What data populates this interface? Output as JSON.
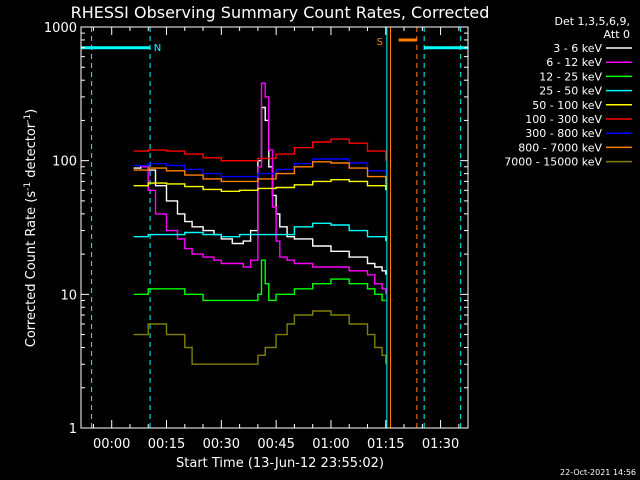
{
  "chart_data": {
    "type": "line",
    "title": "RHESSI Observing Summary Count Rates, Corrected",
    "xlabel": "Start Time (13-Jun-12 23:55:02)",
    "ylabel_main": "Corrected Count Rate (s",
    "ylabel_sup1": "-1",
    "ylabel_mid": " detector",
    "ylabel_sup2": "-1",
    "ylabel_end": ")",
    "yscale": "log",
    "ylim": [
      1,
      1000
    ],
    "xlim_minutes": [
      -8.4,
      97.5
    ],
    "x_ticks": [
      {
        "label": "00:00",
        "min": 0
      },
      {
        "label": "00:15",
        "min": 15
      },
      {
        "label": "00:30",
        "min": 30
      },
      {
        "label": "00:45",
        "min": 45
      },
      {
        "label": "01:00",
        "min": 60
      },
      {
        "label": "01:15",
        "min": 75
      },
      {
        "label": "01:30",
        "min": 90
      }
    ],
    "y_ticks": [
      {
        "label": "1",
        "v": 1
      },
      {
        "label": "10",
        "v": 10
      },
      {
        "label": "100",
        "v": 100
      },
      {
        "label": "1000",
        "v": 1000
      }
    ],
    "legend_header": [
      "Det 1,3,5,6,9,",
      "Att 0"
    ],
    "footer_date": "22-Oct-2021 14:56",
    "annotations": [
      {
        "label": "N",
        "color": "#00ffff"
      },
      {
        "label": "S",
        "color": "#ff8000"
      }
    ],
    "night_bars": [
      {
        "x0": -8.4,
        "x1": 10.5,
        "y": 700,
        "color": "#00ffff"
      },
      {
        "x0": 85.5,
        "x1": 97.5,
        "y": 700,
        "color": "#00ffff"
      }
    ],
    "saa_bar": {
      "x0": 78.5,
      "x1": 83.5,
      "y": 800,
      "color": "#ff8000"
    },
    "vlines": [
      {
        "x": -5.5,
        "color": "#00ffff",
        "style": "dashed"
      },
      {
        "x": 10.5,
        "color": "#00ffff",
        "style": "dashed"
      },
      {
        "x": 75.3,
        "color": "#00ffff",
        "style": "solid"
      },
      {
        "x": 85.5,
        "color": "#00ffff",
        "style": "dashed"
      },
      {
        "x": 76.3,
        "color": "#ff8000",
        "style": "solid"
      },
      {
        "x": 83.5,
        "color": "#ff8000",
        "style": "dashed"
      },
      {
        "x": 95.5,
        "color": "#00ffff",
        "style": "dashed"
      }
    ],
    "series": [
      {
        "name": "3 - 6 keV",
        "color": "#ffffff",
        "x": [
          6,
          8,
          10,
          12,
          15,
          18,
          20,
          22,
          25,
          28,
          30,
          33,
          36,
          38,
          40,
          41,
          42,
          43,
          44,
          45,
          46,
          48,
          50,
          55,
          60,
          65,
          70,
          72,
          74,
          75
        ],
        "y": [
          88,
          90,
          85,
          65,
          50,
          40,
          35,
          32,
          30,
          28,
          26,
          24,
          25,
          30,
          100,
          250,
          200,
          90,
          55,
          40,
          32,
          27,
          26,
          23,
          21,
          19,
          17,
          16,
          15,
          14
        ]
      },
      {
        "name": "6 - 12 keV",
        "color": "#ff00ff",
        "x": [
          8,
          10,
          12,
          15,
          18,
          20,
          22,
          25,
          28,
          30,
          33,
          36,
          38,
          40,
          41,
          42,
          43,
          44,
          45,
          46,
          48,
          50,
          55,
          60,
          65,
          70,
          72,
          74,
          75
        ],
        "y": [
          90,
          60,
          40,
          30,
          26,
          22,
          20,
          19,
          18,
          17,
          17,
          16,
          18,
          90,
          380,
          300,
          120,
          45,
          25,
          19,
          18,
          17,
          16,
          16,
          15,
          14,
          12,
          11,
          10
        ]
      },
      {
        "name": "12 - 25 keV",
        "color": "#00ff00",
        "x": [
          6,
          10,
          15,
          20,
          25,
          30,
          35,
          40,
          41,
          42,
          43,
          45,
          50,
          55,
          60,
          65,
          70,
          72,
          74,
          75
        ],
        "y": [
          10,
          11,
          11,
          10,
          9,
          9,
          9,
          10,
          18,
          12,
          9,
          10,
          11,
          12,
          13,
          12,
          11,
          10,
          9,
          9
        ]
      },
      {
        "name": "25 - 50 keV",
        "color": "#00ffff",
        "x": [
          6,
          10,
          15,
          20,
          25,
          30,
          35,
          40,
          45,
          50,
          55,
          60,
          65,
          70,
          75
        ],
        "y": [
          27,
          28,
          28,
          29,
          28,
          27,
          28,
          28,
          28,
          32,
          34,
          33,
          30,
          27,
          25
        ]
      },
      {
        "name": "50 - 100 keV",
        "color": "#ffff00",
        "x": [
          6,
          10,
          15,
          20,
          25,
          30,
          35,
          40,
          45,
          50,
          55,
          60,
          65,
          70,
          75
        ],
        "y": [
          65,
          68,
          67,
          64,
          61,
          59,
          60,
          62,
          63,
          66,
          70,
          72,
          70,
          65,
          60
        ]
      },
      {
        "name": "100 - 300 keV",
        "color": "#ff0000",
        "x": [
          6,
          10,
          15,
          20,
          25,
          30,
          35,
          40,
          45,
          50,
          55,
          60,
          65,
          70,
          75
        ],
        "y": [
          118,
          120,
          118,
          112,
          105,
          100,
          100,
          104,
          112,
          125,
          138,
          145,
          135,
          118,
          100
        ]
      },
      {
        "name": "300 - 800 keV",
        "color": "#0000ff",
        "x": [
          6,
          10,
          15,
          20,
          25,
          30,
          35,
          40,
          45,
          50,
          55,
          60,
          65,
          70,
          75
        ],
        "y": [
          92,
          95,
          92,
          86,
          80,
          76,
          76,
          80,
          86,
          95,
          103,
          103,
          96,
          84,
          72
        ]
      },
      {
        "name": "800 - 7000 keV",
        "color": "#ff8000",
        "x": [
          6,
          10,
          15,
          20,
          25,
          30,
          35,
          40,
          45,
          50,
          55,
          60,
          65,
          70,
          75
        ],
        "y": [
          85,
          88,
          84,
          78,
          73,
          70,
          70,
          73,
          80,
          90,
          98,
          96,
          88,
          76,
          66
        ]
      },
      {
        "name": "7000 - 15000 keV",
        "color": "#808000",
        "x": [
          6,
          10,
          15,
          20,
          22,
          25,
          30,
          35,
          40,
          42,
          45,
          48,
          50,
          55,
          60,
          65,
          70,
          72,
          74,
          75
        ],
        "y": [
          5,
          6,
          5,
          4,
          3,
          3,
          3,
          3,
          3.5,
          4,
          5,
          6,
          7,
          7.5,
          7,
          6,
          5,
          4,
          3.5,
          3
        ]
      }
    ]
  }
}
